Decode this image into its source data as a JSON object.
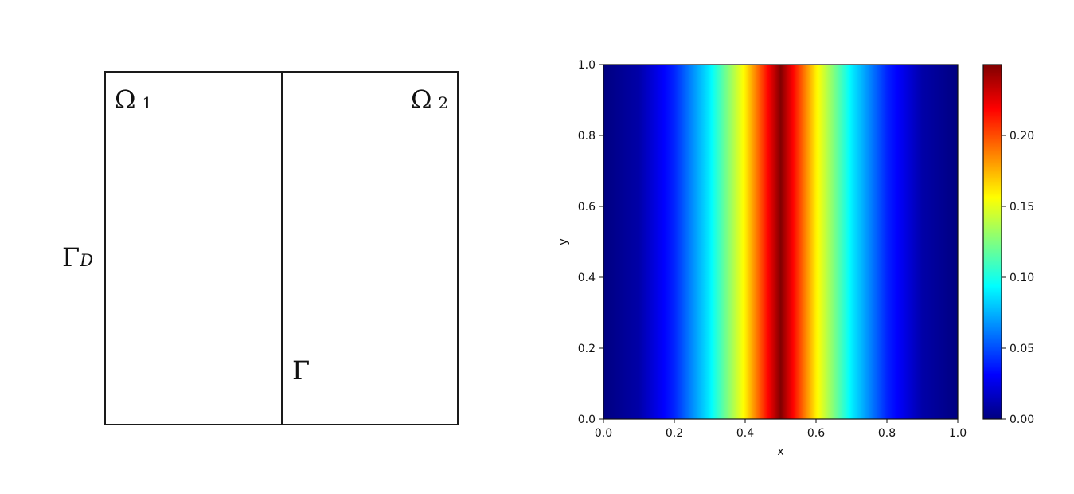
{
  "diagram": {
    "omega1": {
      "symbol": "Ω",
      "sub": "1"
    },
    "omega2": {
      "symbol": "Ω",
      "sub": "2"
    },
    "gamma_d": {
      "symbol": "Γ",
      "sub": "D"
    },
    "gamma": {
      "symbol": "Γ"
    }
  },
  "chart_data": {
    "type": "heatmap",
    "title": "",
    "xlabel": "x",
    "ylabel": "y",
    "xlim": [
      0.0,
      1.0
    ],
    "ylim": [
      0.0,
      1.0
    ],
    "x_ticks": [
      "0.0",
      "0.2",
      "0.4",
      "0.6",
      "0.8",
      "1.0"
    ],
    "y_ticks": [
      "0.0",
      "0.2",
      "0.4",
      "0.6",
      "0.8",
      "1.0"
    ],
    "colormap": "jet",
    "value_range": [
      0.0,
      0.25
    ],
    "colorbar_ticks": [
      "0.00",
      "0.05",
      "0.10",
      "0.15",
      "0.20"
    ],
    "profile": {
      "direction": "varies with x only",
      "x": [
        0.0,
        0.1,
        0.2,
        0.3,
        0.4,
        0.5,
        0.6,
        0.7,
        0.8,
        0.9,
        1.0
      ],
      "values": [
        0.0,
        0.01,
        0.04,
        0.09,
        0.16,
        0.25,
        0.16,
        0.09,
        0.04,
        0.01,
        0.0
      ]
    },
    "grid": false
  }
}
